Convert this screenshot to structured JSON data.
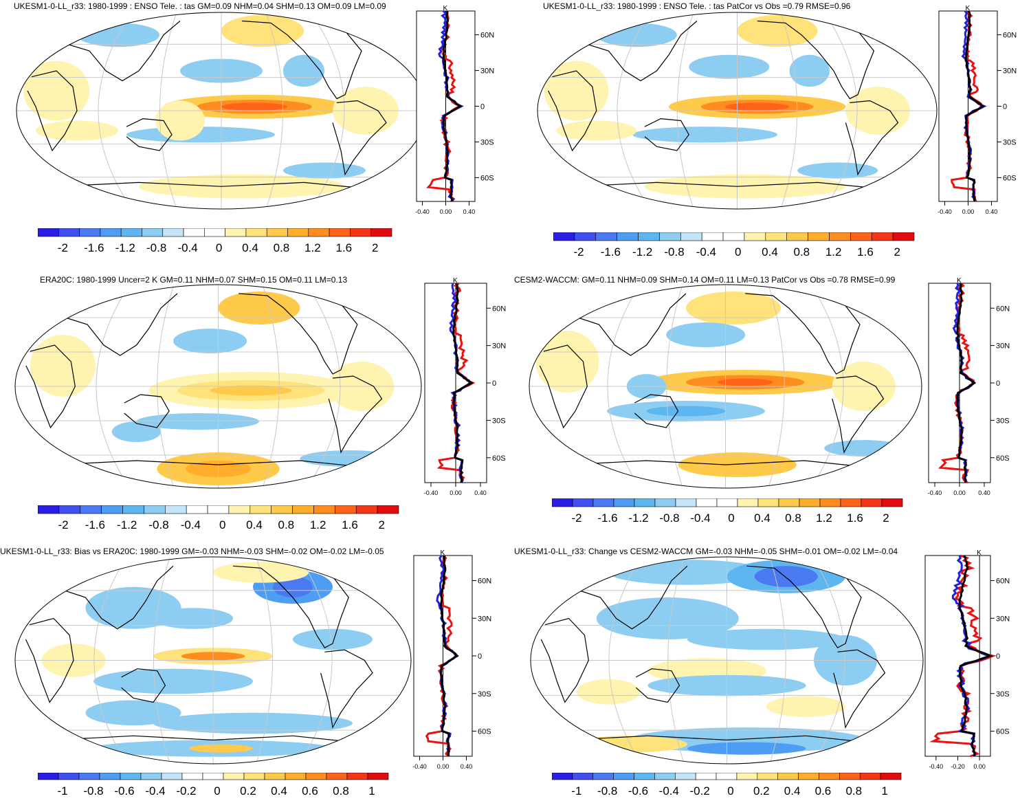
{
  "panels": [
    {
      "title": "UKESM1-0-LL_r33: 1980-1999 : ENSO Tele. : tas GM=0.09 NHM=0.04 SHM=0.13 OM=0.09 LM=0.09",
      "colorbar": [
        "-2",
        "-1.6",
        "-1.2",
        "-0.8",
        "-0.4",
        "0",
        "0.4",
        "0.8",
        "1.2",
        "1.6",
        "2"
      ],
      "profile_ticks_x": [
        "-0.40",
        "0.00",
        "0.40"
      ],
      "profile_unit": "K",
      "lat_labels": [
        "60N",
        "30N",
        "0",
        "30S",
        "60S"
      ]
    },
    {
      "title": "UKESM1-0-LL_r33: 1980-1999 : ENSO Tele. : tas PatCor vs Obs =0.79 RMSE=0.96",
      "colorbar": [
        "-2",
        "-1.6",
        "-1.2",
        "-0.8",
        "-0.4",
        "0",
        "0.4",
        "0.8",
        "1.2",
        "1.6",
        "2"
      ],
      "profile_ticks_x": [
        "-0.40",
        "0.00",
        "0.40"
      ],
      "profile_unit": "K",
      "lat_labels": [
        "60N",
        "30N",
        "0",
        "30S",
        "60S"
      ]
    },
    {
      "title": "ERA20C: 1980-1999 Uncer=2 K GM=0.11 NHM=0.07 SHM=0.15 OM=0.11 LM=0.13",
      "colorbar": [
        "-2",
        "-1.6",
        "-1.2",
        "-0.8",
        "-0.4",
        "0",
        "0.4",
        "0.8",
        "1.2",
        "1.6",
        "2"
      ],
      "profile_ticks_x": [
        "-0.40",
        "0.00",
        "0.40"
      ],
      "profile_unit": "K",
      "lat_labels": [
        "60N",
        "30N",
        "0",
        "30S",
        "60S"
      ]
    },
    {
      "title": "CESM2-WACCM: GM=0.11 NHM=0.09 SHM=0.14 OM=0.11 LM=0.13 PatCor vs Obs =0.78 RMSE=0.99",
      "colorbar": [
        "-2",
        "-1.6",
        "-1.2",
        "-0.8",
        "-0.4",
        "0",
        "0.4",
        "0.8",
        "1.2",
        "1.6",
        "2"
      ],
      "profile_ticks_x": [
        "-0.40",
        "0.00",
        "0.40"
      ],
      "profile_unit": "K",
      "lat_labels": [
        "60N",
        "30N",
        "0",
        "30S",
        "60S"
      ]
    },
    {
      "title": "UKESM1-0-LL_r33: Bias vs ERA20C: 1980-1999 GM=-0.03 NHM=-0.03 SHM=-0.02 OM=-0.02 LM=-0.05",
      "colorbar": [
        "-1",
        "-0.8",
        "-0.6",
        "-0.4",
        "-0.2",
        "0",
        "0.2",
        "0.4",
        "0.6",
        "0.8",
        "1"
      ],
      "profile_ticks_x": [
        "-0.40",
        "0.00",
        "0.40"
      ],
      "profile_unit": "K",
      "lat_labels": [
        "60N",
        "30N",
        "0",
        "30S",
        "60S"
      ]
    },
    {
      "title": "UKESM1-0-LL_r33: Change vs CESM2-WACCM GM=-0.03 NHM=-0.05 SHM=-0.01 OM=-0.02 LM=-0.04",
      "colorbar": [
        "-1",
        "-0.8",
        "-0.6",
        "-0.4",
        "-0.2",
        "0",
        "0.2",
        "0.4",
        "0.6",
        "0.8",
        "1"
      ],
      "profile_ticks_x": [
        "-0.40",
        "-0.20",
        "0.00"
      ],
      "profile_unit": "K",
      "lat_labels": [
        "60N",
        "30N",
        "0",
        "30S",
        "60S"
      ]
    }
  ],
  "colors": {
    "palette": [
      "#2a1ee6",
      "#3f4ff0",
      "#4a79f2",
      "#4d9ef2",
      "#5db6ef",
      "#8dcdf2",
      "#c4e4f7",
      "#ffffff",
      "#ffffff",
      "#fff3b0",
      "#ffe27a",
      "#ffc94a",
      "#ffad2a",
      "#ff8c1f",
      "#ff631a",
      "#f43516",
      "#e00c10"
    ],
    "land": "#000000",
    "grid": "#c8c8c8",
    "obs_line": "#000000",
    "model_line": "#2020e0",
    "ref_line": "#ee1010"
  }
}
